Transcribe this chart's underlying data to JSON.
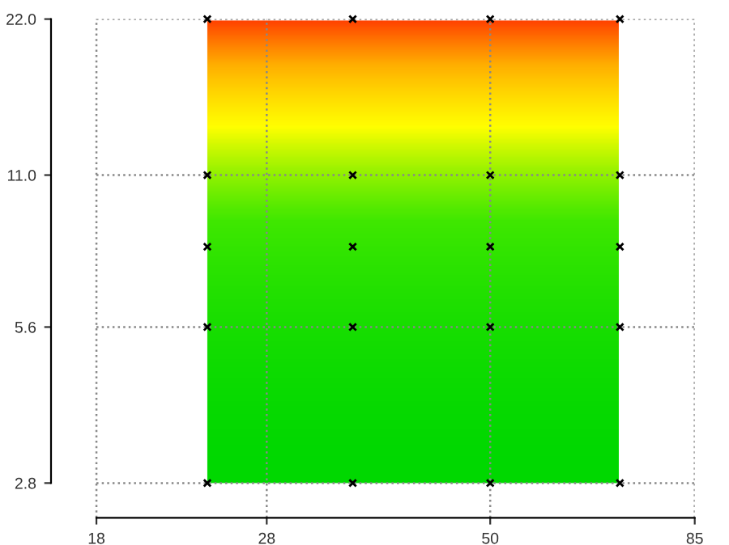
{
  "chart_data": {
    "type": "scatter",
    "log": "xy",
    "marker": "cross",
    "grid": true,
    "xlim": [
      16,
      85
    ],
    "ylim": [
      2.4,
      22
    ],
    "xticks": [
      18,
      28,
      50,
      85
    ],
    "yticks": [
      {
        "value": 2.8,
        "label": "2.8"
      },
      {
        "value": 5.6,
        "label": "5.6"
      },
      {
        "value": 11,
        "label": "11.0"
      },
      {
        "value": 22,
        "label": "22.0"
      }
    ],
    "series": [
      {
        "color": "#000000",
        "x": [
          24,
          35,
          50,
          70,
          24,
          35,
          50,
          70,
          24,
          35,
          50,
          70,
          24,
          35,
          50,
          70,
          24,
          35,
          50,
          70
        ],
        "values": [
          2.8,
          2.8,
          2.8,
          2.8,
          5.6,
          5.6,
          5.6,
          5.6,
          8,
          8,
          8,
          8,
          11,
          11,
          11,
          11,
          22,
          22,
          22,
          22
        ]
      }
    ]
  }
}
